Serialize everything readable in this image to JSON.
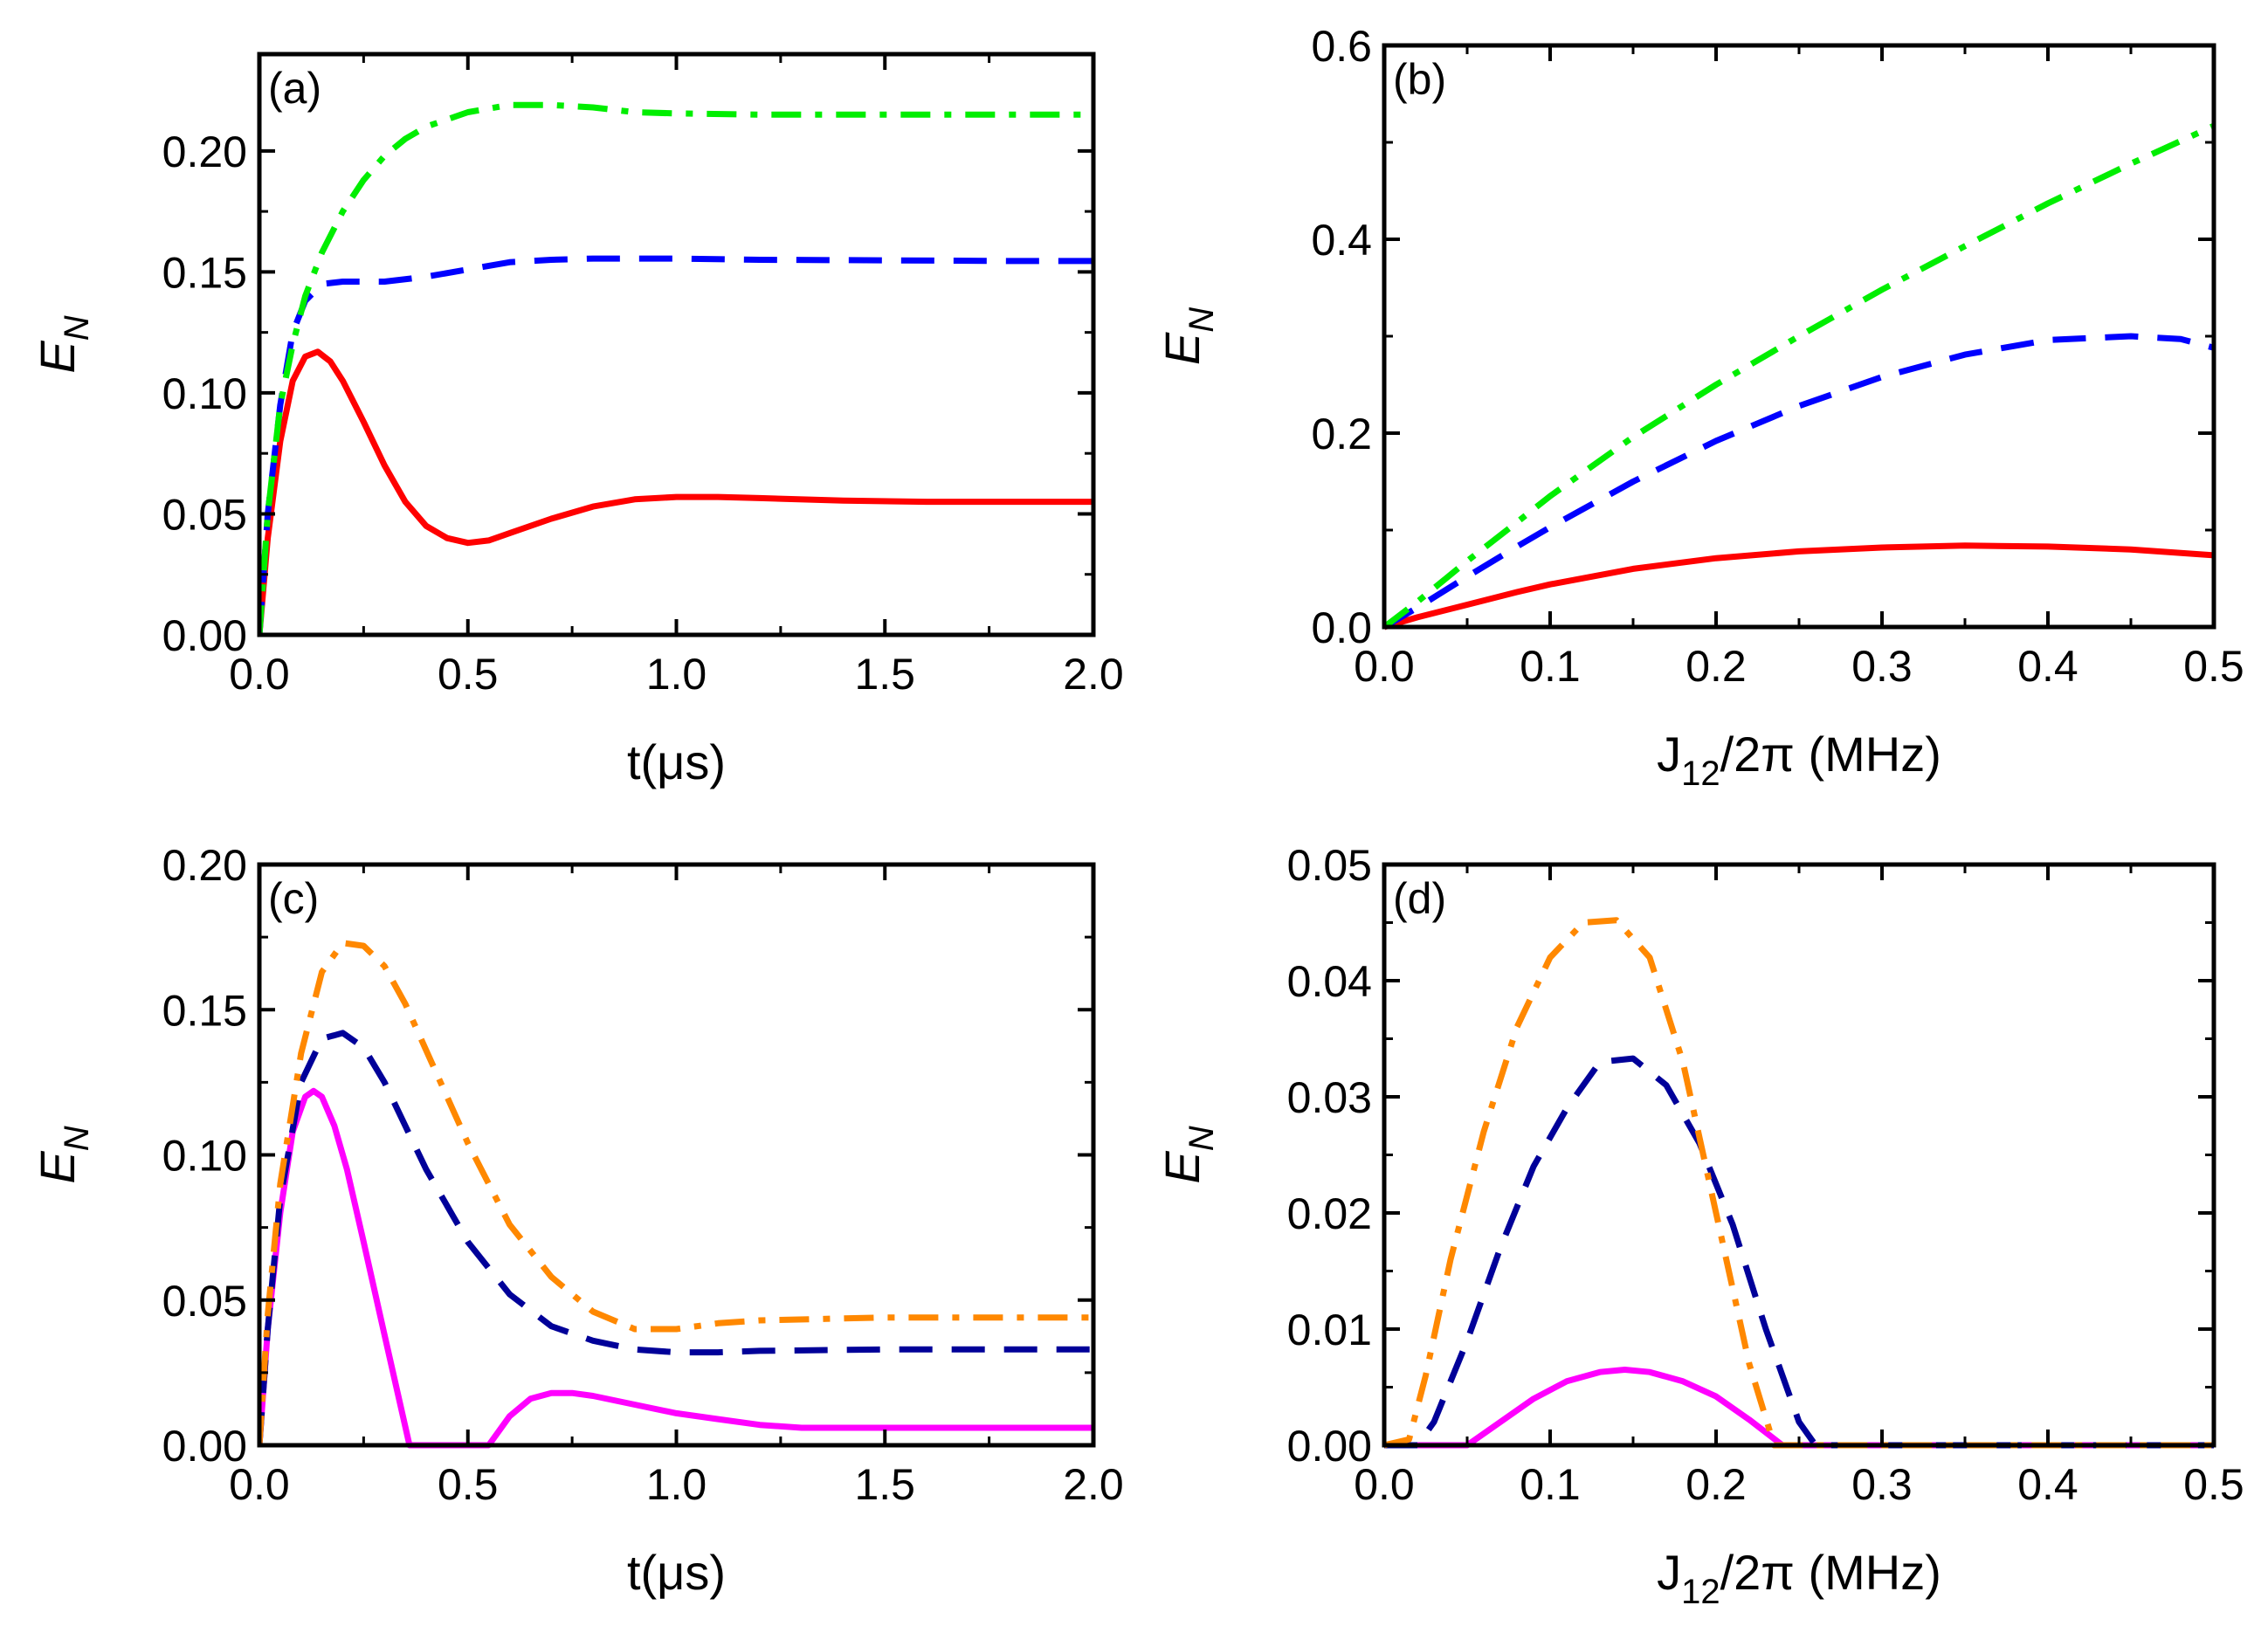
{
  "chart_data": [
    {
      "panel": "(a)",
      "type": "line",
      "xlabel": "t(μs)",
      "ylabel": "E",
      "ylabel_sub": "N",
      "xlim": [
        0,
        2.0
      ],
      "ylim": [
        0,
        0.24
      ],
      "xticks": [
        0.0,
        0.5,
        1.0,
        1.5,
        2.0
      ],
      "xtick_labels": [
        "0.0",
        "0.5",
        "1.0",
        "1.5",
        "2.0"
      ],
      "yticks": [
        0.0,
        0.05,
        0.1,
        0.15,
        0.2
      ],
      "ytick_labels": [
        "0.00",
        "0.05",
        "0.10",
        "0.15",
        "0.20"
      ],
      "series": [
        {
          "style": "solid",
          "color": "#ff0000",
          "x": [
            0,
            0.02,
            0.05,
            0.08,
            0.11,
            0.14,
            0.17,
            0.2,
            0.25,
            0.3,
            0.35,
            0.4,
            0.45,
            0.5,
            0.55,
            0.6,
            0.7,
            0.8,
            0.9,
            1.0,
            1.1,
            1.2,
            1.4,
            1.6,
            1.8,
            2.0
          ],
          "y": [
            0,
            0.04,
            0.08,
            0.105,
            0.115,
            0.117,
            0.113,
            0.105,
            0.088,
            0.07,
            0.055,
            0.045,
            0.04,
            0.038,
            0.039,
            0.042,
            0.048,
            0.053,
            0.056,
            0.057,
            0.057,
            0.0565,
            0.0555,
            0.055,
            0.055,
            0.055
          ]
        },
        {
          "style": "dashed",
          "color": "#0000ff",
          "x": [
            0,
            0.02,
            0.05,
            0.08,
            0.11,
            0.15,
            0.2,
            0.3,
            0.4,
            0.5,
            0.6,
            0.7,
            0.8,
            1.0,
            1.2,
            1.5,
            1.8,
            2.0
          ],
          "y": [
            0,
            0.05,
            0.095,
            0.125,
            0.138,
            0.145,
            0.146,
            0.146,
            0.148,
            0.151,
            0.154,
            0.155,
            0.1555,
            0.1555,
            0.155,
            0.1548,
            0.1545,
            0.1545
          ]
        },
        {
          "style": "dashdot",
          "color": "#00ee00",
          "x": [
            0,
            0.02,
            0.05,
            0.08,
            0.11,
            0.15,
            0.2,
            0.25,
            0.3,
            0.35,
            0.4,
            0.5,
            0.6,
            0.7,
            0.8,
            0.9,
            1.0,
            1.2,
            1.5,
            1.8,
            2.0
          ],
          "y": [
            0,
            0.05,
            0.095,
            0.12,
            0.14,
            0.158,
            0.175,
            0.188,
            0.198,
            0.205,
            0.21,
            0.216,
            0.219,
            0.219,
            0.218,
            0.216,
            0.2155,
            0.215,
            0.215,
            0.215,
            0.215
          ]
        }
      ]
    },
    {
      "panel": "(b)",
      "type": "line",
      "xlabel": "J",
      "xlabel_sub": "12",
      "xlabel_rest": "/2π (MHz)",
      "ylabel": "E",
      "ylabel_sub": "N",
      "xlim": [
        0,
        0.5
      ],
      "ylim": [
        0,
        0.6
      ],
      "xticks": [
        0.0,
        0.1,
        0.2,
        0.3,
        0.4,
        0.5
      ],
      "xtick_labels": [
        "0.0",
        "0.1",
        "0.2",
        "0.3",
        "0.4",
        "0.5"
      ],
      "yticks": [
        0.0,
        0.2,
        0.4,
        0.6
      ],
      "ytick_labels": [
        "0.0",
        "0.2",
        "0.4",
        "0.6"
      ],
      "series": [
        {
          "style": "solid",
          "color": "#ff0000",
          "x": [
            0,
            0.02,
            0.05,
            0.08,
            0.1,
            0.15,
            0.2,
            0.25,
            0.3,
            0.35,
            0.4,
            0.45,
            0.5
          ],
          "y": [
            0,
            0.01,
            0.023,
            0.036,
            0.044,
            0.06,
            0.071,
            0.078,
            0.082,
            0.084,
            0.083,
            0.08,
            0.074
          ]
        },
        {
          "style": "dashed",
          "color": "#0000ff",
          "x": [
            0,
            0.02,
            0.05,
            0.08,
            0.1,
            0.15,
            0.2,
            0.25,
            0.3,
            0.35,
            0.4,
            0.45,
            0.48,
            0.5
          ],
          "y": [
            0,
            0.02,
            0.052,
            0.083,
            0.103,
            0.15,
            0.192,
            0.228,
            0.258,
            0.281,
            0.296,
            0.3,
            0.297,
            0.288
          ]
        },
        {
          "style": "dashdot",
          "color": "#00ee00",
          "x": [
            0,
            0.02,
            0.05,
            0.08,
            0.1,
            0.15,
            0.2,
            0.25,
            0.3,
            0.35,
            0.4,
            0.45,
            0.5
          ],
          "y": [
            0,
            0.026,
            0.068,
            0.108,
            0.135,
            0.196,
            0.25,
            0.3,
            0.348,
            0.393,
            0.437,
            0.478,
            0.517
          ]
        }
      ]
    },
    {
      "panel": "(c)",
      "type": "line",
      "xlabel": "t(μs)",
      "ylabel": "E",
      "ylabel_sub": "N",
      "xlim": [
        0,
        2.0
      ],
      "ylim": [
        0,
        0.2
      ],
      "xticks": [
        0.0,
        0.5,
        1.0,
        1.5,
        2.0
      ],
      "xtick_labels": [
        "0.0",
        "0.5",
        "1.0",
        "1.5",
        "2.0"
      ],
      "yticks": [
        0.0,
        0.05,
        0.1,
        0.15,
        0.2
      ],
      "ytick_labels": [
        "0.00",
        "0.05",
        "0.10",
        "0.15",
        "0.20"
      ],
      "series": [
        {
          "style": "solid",
          "color": "#ff00ff",
          "x": [
            0,
            0.02,
            0.05,
            0.08,
            0.11,
            0.13,
            0.15,
            0.18,
            0.21,
            0.25,
            0.3,
            0.36,
            0.4,
            0.45,
            0.5,
            0.55,
            0.6,
            0.65,
            0.7,
            0.75,
            0.8,
            0.9,
            1.0,
            1.1,
            1.2,
            1.3,
            1.5,
            1.7,
            2.0
          ],
          "y": [
            0,
            0.04,
            0.08,
            0.108,
            0.12,
            0.122,
            0.12,
            0.11,
            0.095,
            0.07,
            0.038,
            0.0,
            0.0,
            0.0,
            0.0,
            0.0,
            0.01,
            0.016,
            0.018,
            0.018,
            0.017,
            0.014,
            0.011,
            0.009,
            0.007,
            0.006,
            0.006,
            0.006,
            0.006
          ]
        },
        {
          "style": "dashed",
          "color": "#000099",
          "x": [
            0,
            0.02,
            0.05,
            0.1,
            0.15,
            0.2,
            0.25,
            0.3,
            0.35,
            0.4,
            0.5,
            0.6,
            0.7,
            0.8,
            0.9,
            1.0,
            1.1,
            1.2,
            1.5,
            2.0
          ],
          "y": [
            0,
            0.04,
            0.085,
            0.125,
            0.14,
            0.142,
            0.137,
            0.125,
            0.11,
            0.095,
            0.07,
            0.052,
            0.041,
            0.036,
            0.033,
            0.032,
            0.032,
            0.0325,
            0.033,
            0.033
          ]
        },
        {
          "style": "dashdot",
          "color": "#ff8800",
          "x": [
            0,
            0.02,
            0.05,
            0.1,
            0.15,
            0.2,
            0.25,
            0.3,
            0.35,
            0.4,
            0.5,
            0.6,
            0.7,
            0.8,
            0.9,
            1.0,
            1.1,
            1.2,
            1.5,
            2.0
          ],
          "y": [
            0,
            0.045,
            0.09,
            0.135,
            0.163,
            0.173,
            0.172,
            0.165,
            0.152,
            0.136,
            0.104,
            0.076,
            0.058,
            0.046,
            0.04,
            0.04,
            0.042,
            0.043,
            0.044,
            0.044
          ]
        }
      ]
    },
    {
      "panel": "(d)",
      "type": "line",
      "xlabel": "J",
      "xlabel_sub": "12",
      "xlabel_rest": "/2π (MHz)",
      "ylabel": "E",
      "ylabel_sub": "N",
      "xlim": [
        0,
        0.5
      ],
      "ylim": [
        0,
        0.05
      ],
      "xticks": [
        0.0,
        0.1,
        0.2,
        0.3,
        0.4,
        0.5
      ],
      "xtick_labels": [
        "0.0",
        "0.1",
        "0.2",
        "0.3",
        "0.4",
        "0.5"
      ],
      "yticks": [
        0.0,
        0.01,
        0.02,
        0.03,
        0.04,
        0.05
      ],
      "ytick_labels": [
        "0.00",
        "0.01",
        "0.02",
        "0.03",
        "0.04",
        "0.05"
      ],
      "series": [
        {
          "style": "solid",
          "color": "#ff00ff",
          "x": [
            0,
            0.05,
            0.07,
            0.09,
            0.11,
            0.13,
            0.145,
            0.16,
            0.18,
            0.2,
            0.22,
            0.24,
            0.26,
            0.3,
            0.35,
            0.4,
            0.45,
            0.5
          ],
          "y": [
            0,
            0.0,
            0.002,
            0.004,
            0.0055,
            0.0063,
            0.0065,
            0.0063,
            0.0055,
            0.0042,
            0.0022,
            0.0,
            0.0,
            0.0,
            0.0,
            0.0,
            0.0,
            0.0
          ]
        },
        {
          "style": "dashed",
          "color": "#000099",
          "x": [
            0,
            0.02,
            0.03,
            0.05,
            0.07,
            0.09,
            0.11,
            0.13,
            0.15,
            0.17,
            0.19,
            0.21,
            0.23,
            0.25,
            0.26,
            0.3,
            0.35,
            0.4,
            0.45,
            0.5
          ],
          "y": [
            0,
            0.0,
            0.002,
            0.009,
            0.017,
            0.024,
            0.029,
            0.033,
            0.0333,
            0.031,
            0.026,
            0.019,
            0.01,
            0.002,
            0.0,
            0.0,
            0.0,
            0.0,
            0.0,
            0.0
          ]
        },
        {
          "style": "dashdot",
          "color": "#ff8800",
          "x": [
            0,
            0.015,
            0.025,
            0.04,
            0.06,
            0.08,
            0.1,
            0.12,
            0.14,
            0.16,
            0.18,
            0.2,
            0.22,
            0.235,
            0.25,
            0.3,
            0.35,
            0.4,
            0.45,
            0.5
          ],
          "y": [
            0,
            0.0005,
            0.006,
            0.016,
            0.027,
            0.036,
            0.042,
            0.045,
            0.0452,
            0.042,
            0.033,
            0.02,
            0.007,
            0.0,
            0.0,
            0.0,
            0.0,
            0.0,
            0.0,
            0.0
          ]
        }
      ]
    }
  ]
}
